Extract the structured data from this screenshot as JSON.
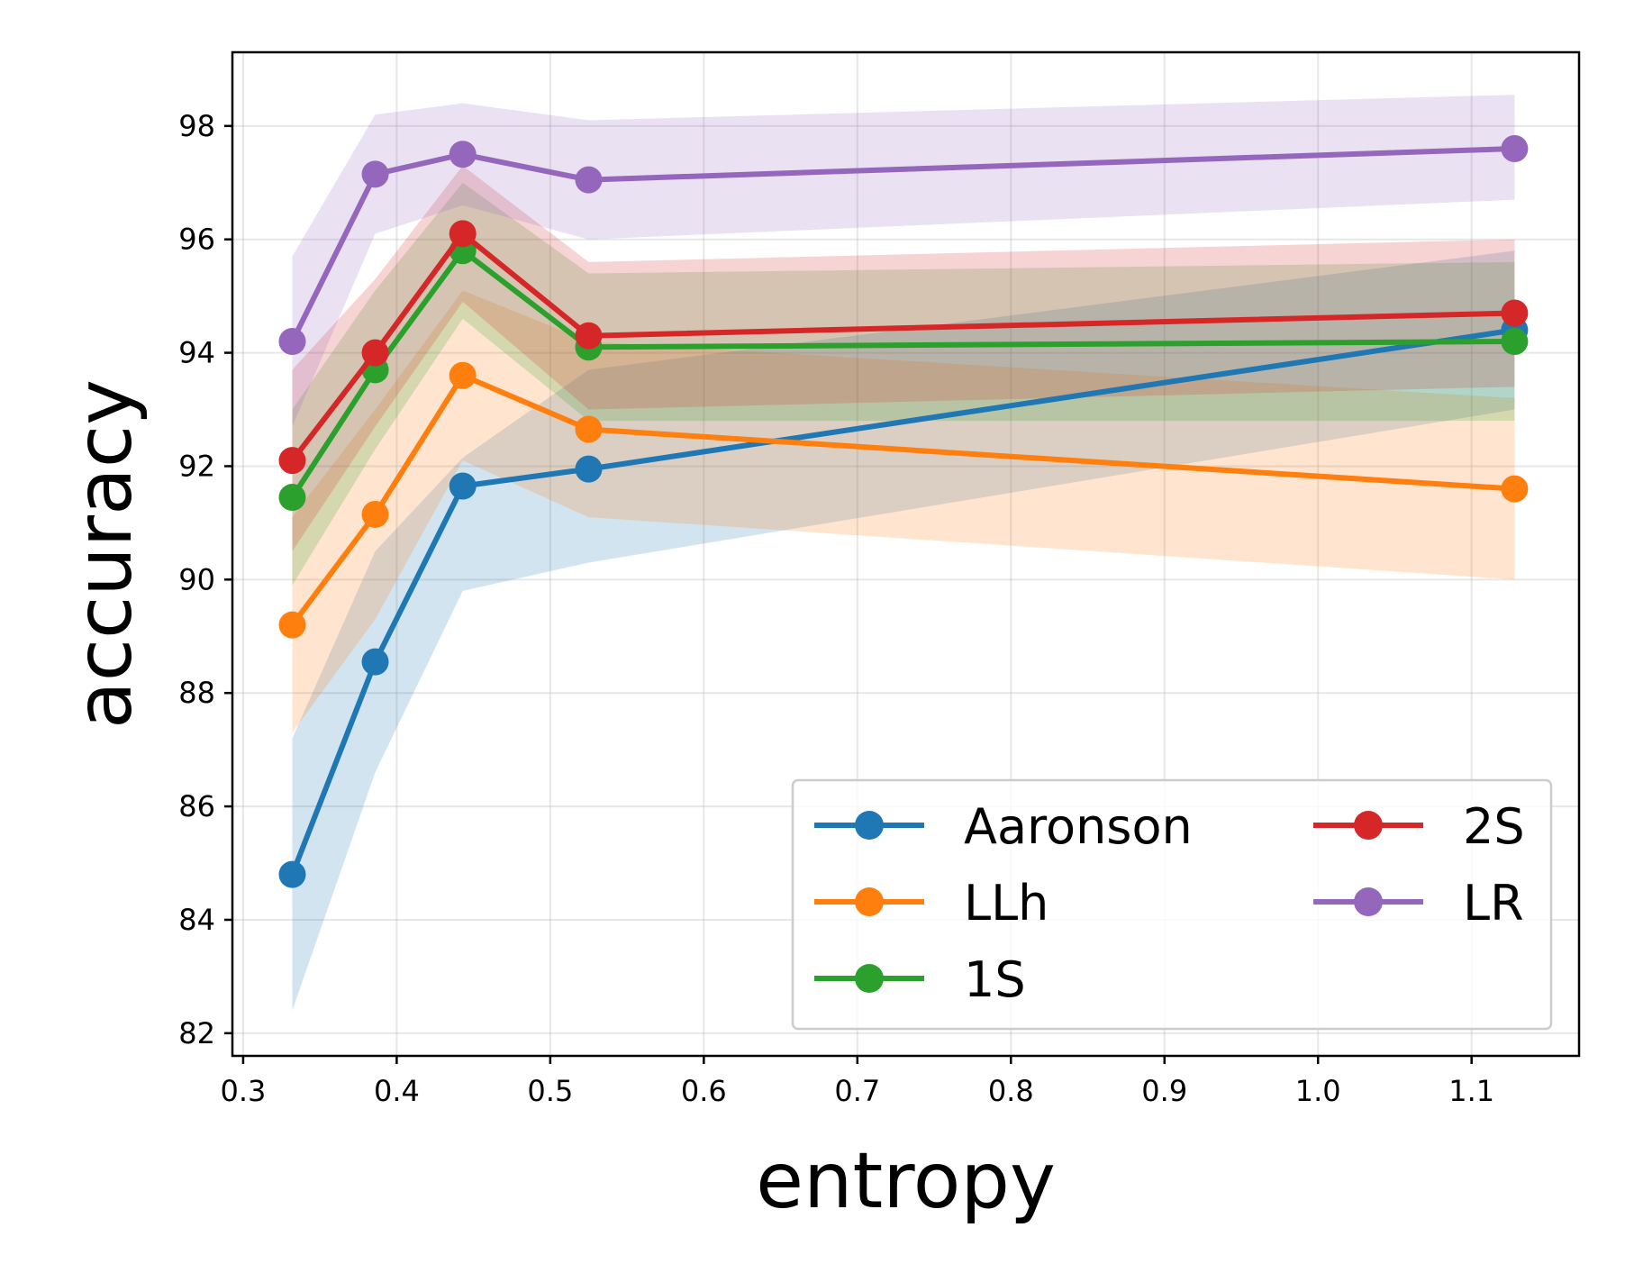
{
  "chart_data": {
    "type": "line",
    "title": "",
    "xlabel": "entropy",
    "ylabel": "accuracy",
    "xlim": [
      0.293,
      1.17
    ],
    "ylim": [
      81.6,
      99.3
    ],
    "xticks": [
      0.3,
      0.4,
      0.5,
      0.6,
      0.7,
      0.8,
      0.9,
      1.0,
      1.1
    ],
    "xtick_labels": [
      "0.3",
      "0.4",
      "0.5",
      "0.6",
      "0.7",
      "0.8",
      "0.9",
      "1.0",
      "1.1"
    ],
    "yticks": [
      82,
      84,
      86,
      88,
      90,
      92,
      94,
      96,
      98
    ],
    "ytick_labels": [
      "82",
      "84",
      "86",
      "88",
      "90",
      "92",
      "94",
      "96",
      "98"
    ],
    "grid": true,
    "legend": {
      "position": "lower-right",
      "columns": 2
    },
    "x": [
      0.332,
      0.386,
      0.443,
      0.525,
      1.128
    ],
    "series": [
      {
        "name": "Aaronson",
        "color": "#1f77b4",
        "values": [
          84.8,
          88.55,
          91.65,
          91.95,
          94.4
        ],
        "lower": [
          82.4,
          86.6,
          89.8,
          90.3,
          93.0
        ],
        "upper": [
          87.2,
          90.5,
          92.15,
          93.7,
          95.8
        ]
      },
      {
        "name": "LLh",
        "color": "#ff7f0e",
        "values": [
          89.2,
          91.15,
          93.6,
          92.65,
          91.6
        ],
        "lower": [
          87.3,
          89.3,
          92.1,
          91.1,
          90.0
        ],
        "upper": [
          91.1,
          93.0,
          95.1,
          94.2,
          93.2
        ]
      },
      {
        "name": "1S",
        "color": "#2ca02c",
        "values": [
          91.45,
          93.7,
          95.8,
          94.1,
          94.2
        ],
        "lower": [
          89.9,
          92.3,
          94.6,
          92.8,
          92.8
        ],
        "upper": [
          93.0,
          95.1,
          97.0,
          95.4,
          95.6
        ]
      },
      {
        "name": "2S",
        "color": "#d62728",
        "values": [
          92.1,
          94.0,
          96.1,
          94.3,
          94.7
        ],
        "lower": [
          90.5,
          92.7,
          94.9,
          93.0,
          93.4
        ],
        "upper": [
          93.7,
          95.3,
          97.3,
          95.6,
          96.0
        ]
      },
      {
        "name": "LR",
        "color": "#9467bd",
        "values": [
          94.2,
          97.15,
          97.5,
          97.05,
          97.6
        ],
        "lower": [
          92.7,
          96.1,
          96.6,
          96.0,
          96.7
        ],
        "upper": [
          95.7,
          98.2,
          98.4,
          98.1,
          98.55
        ]
      }
    ]
  }
}
